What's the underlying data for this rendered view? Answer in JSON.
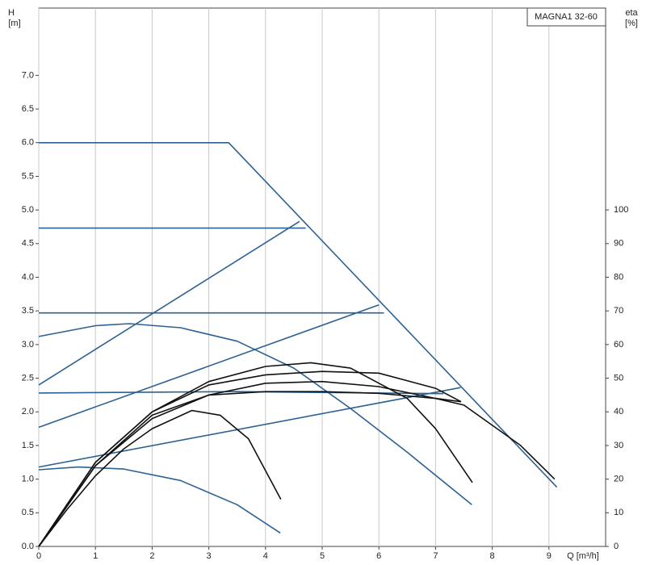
{
  "chart_data": {
    "type": "line",
    "legend_title": "MAGNA1 32-60",
    "ylabel": "H",
    "ylabel_unit": "[m]",
    "y2label": "eta",
    "y2label_unit": "[%]",
    "xlabel": "Q [m³/h]",
    "xlim": [
      0,
      10
    ],
    "ylim": [
      0,
      8
    ],
    "y2lim": [
      0,
      160
    ],
    "xticks": [
      0,
      1,
      2,
      3,
      4,
      5,
      6,
      7,
      8,
      9
    ],
    "yticks": [
      {
        "value": 0,
        "label": "0.0"
      },
      0.5,
      {
        "value": 1,
        "label": "1.0"
      },
      1.5,
      {
        "value": 2,
        "label": "2.0"
      },
      2.5,
      {
        "value": 3,
        "label": "3.0"
      },
      3.5,
      {
        "value": 4,
        "label": "4.0"
      },
      4.5,
      {
        "value": 5,
        "label": "5.0"
      },
      5.5,
      {
        "value": 6,
        "label": "6.0"
      },
      6.5,
      {
        "value": 7,
        "label": "7.0"
      }
    ],
    "y2ticks": [
      0,
      10,
      20,
      30,
      40,
      50,
      60,
      70,
      80,
      90,
      100
    ],
    "grid": "x",
    "series": [
      {
        "color": "#2b6193",
        "x": [
          0,
          3.35,
          9.14
        ],
        "values": [
          6.0,
          6.0,
          0.88
        ]
      },
      {
        "color": "#2b6193",
        "x": [
          0,
          4.71
        ],
        "values": [
          4.73,
          4.73
        ]
      },
      {
        "color": "#2b6193",
        "x": [
          0,
          6.09
        ],
        "values": [
          3.47,
          3.47
        ]
      },
      {
        "color": "#2b6193",
        "x": [
          0,
          3.5,
          7.14
        ],
        "values": [
          2.28,
          2.3,
          2.27
        ]
      },
      {
        "color": "#2b6193",
        "x": [
          0,
          4.6
        ],
        "values": [
          2.4,
          4.83
        ]
      },
      {
        "color": "#2b6193",
        "x": [
          0,
          6.0
        ],
        "values": [
          1.77,
          3.59
        ]
      },
      {
        "color": "#2b6193",
        "x": [
          0,
          7.44
        ],
        "values": [
          1.18,
          2.36
        ]
      },
      {
        "color": "#2b6193",
        "x": [
          0,
          1,
          1.6,
          2.5,
          3.5,
          4.5,
          5.5,
          6.5,
          7.64
        ],
        "values": [
          3.12,
          3.28,
          3.31,
          3.25,
          3.05,
          2.65,
          2.05,
          1.4,
          0.62
        ]
      },
      {
        "color": "#2b6193",
        "x": [
          0,
          0.7,
          1.5,
          2.5,
          3.5,
          4.26
        ],
        "values": [
          1.14,
          1.18,
          1.15,
          0.98,
          0.62,
          0.2
        ]
      },
      {
        "color": "#111111",
        "axis": "y2",
        "x": [
          0,
          0.5,
          1,
          1.5,
          2,
          2.7,
          3.2,
          3.7,
          4.27
        ],
        "values": [
          0,
          11,
          21,
          29,
          35,
          40.4,
          39,
          32,
          14
        ]
      },
      {
        "color": "#111111",
        "axis": "y2",
        "x": [
          0,
          1,
          2,
          3,
          4,
          4.8,
          5.5,
          6.5,
          7,
          7.65
        ],
        "values": [
          0,
          25,
          40,
          49,
          53.5,
          54.6,
          53,
          44,
          35,
          19
        ]
      },
      {
        "color": "#111111",
        "axis": "y2",
        "x": [
          0,
          1,
          2,
          3,
          4,
          5,
          6,
          7,
          7.5,
          8,
          8.5,
          9.1
        ],
        "values": [
          0,
          24,
          38,
          45,
          48.5,
          49,
          47.5,
          44,
          42,
          36,
          30,
          20
        ]
      },
      {
        "color": "#111111",
        "axis": "y2",
        "x": [
          0,
          1,
          2,
          3,
          4,
          5,
          6,
          7,
          7.45
        ],
        "values": [
          0,
          25,
          40,
          48,
          51,
          52,
          51.5,
          47,
          43
        ]
      },
      {
        "color": "#111111",
        "axis": "y2",
        "x": [
          0,
          1,
          2,
          3,
          4,
          5,
          6,
          7,
          7.45
        ],
        "values": [
          0,
          24,
          39,
          45,
          46,
          46,
          45.5,
          44,
          43
        ]
      }
    ]
  }
}
